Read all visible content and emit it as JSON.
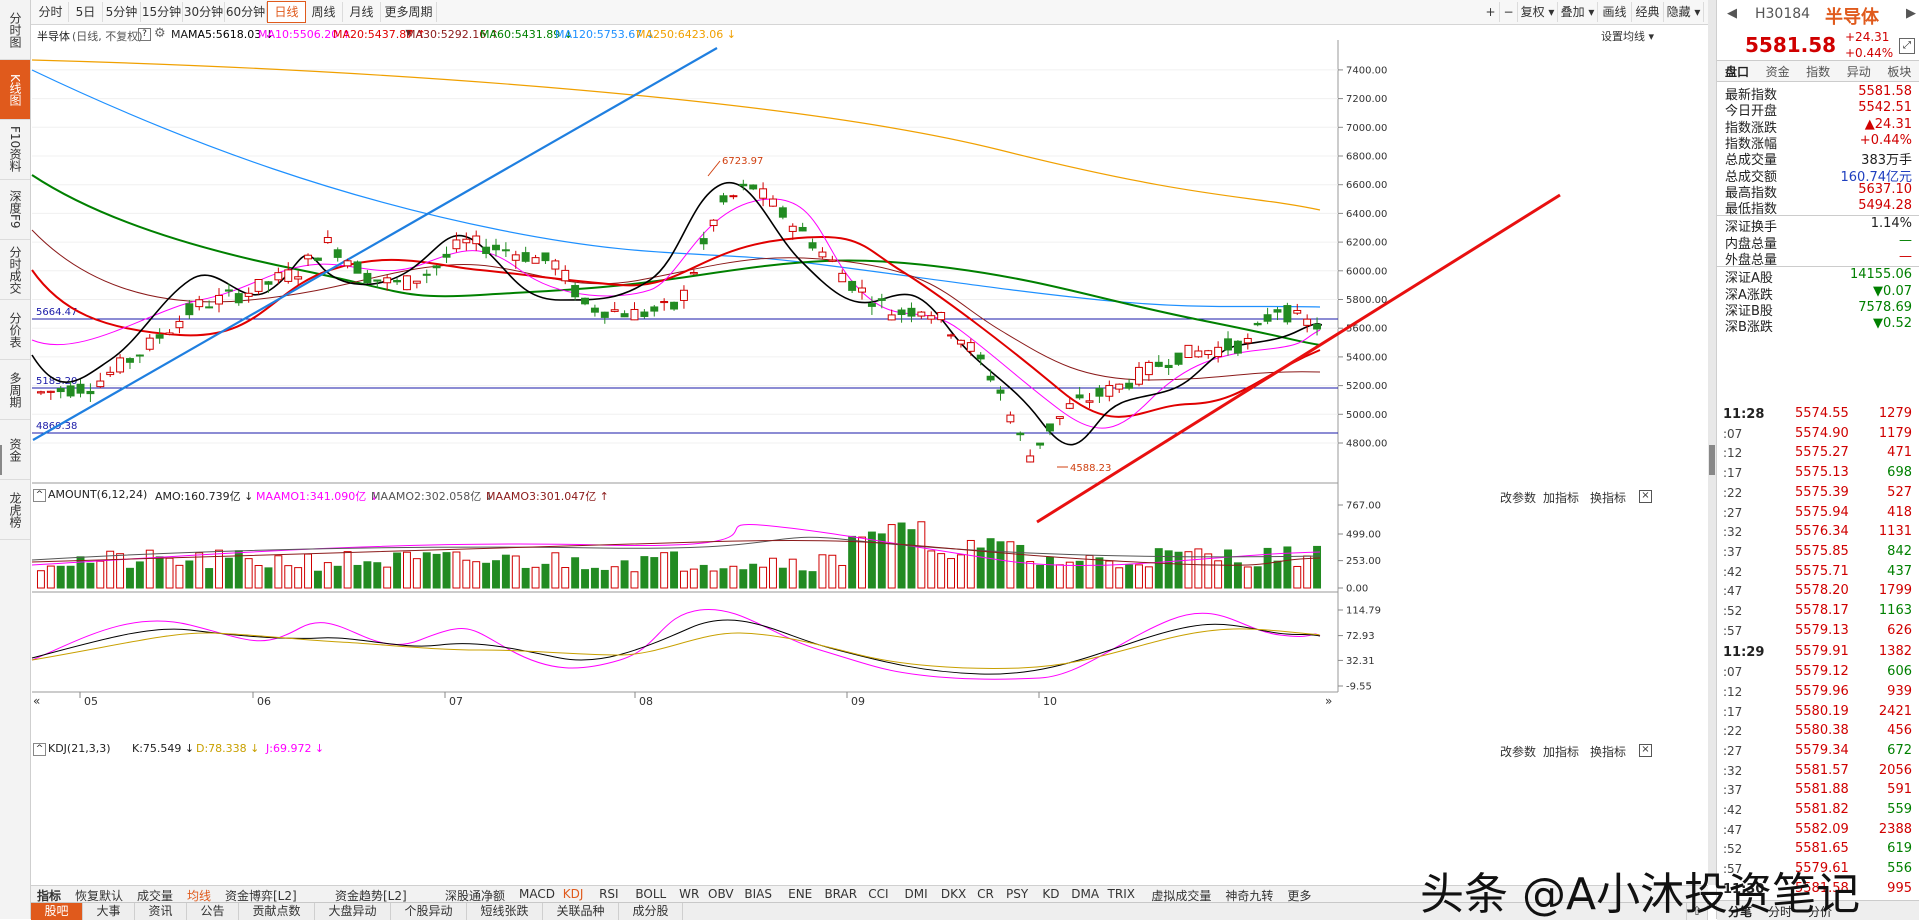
{
  "left_nav": [
    {
      "label": "分时图",
      "active": false
    },
    {
      "label": "K线图",
      "active": true
    },
    {
      "label": "F10资料",
      "active": false
    },
    {
      "label": "深度F9",
      "active": false
    },
    {
      "label": "分时成交",
      "active": false
    },
    {
      "label": "分价表",
      "active": false
    },
    {
      "label": "多周期",
      "active": false
    },
    {
      "label": "资金",
      "active": false
    },
    {
      "label": "龙虎榜",
      "active": false
    }
  ],
  "toolbar": {
    "periods": [
      "分时",
      "5日",
      "5分钟",
      "15分钟",
      "30分钟",
      "60分钟",
      "日线",
      "周线",
      "月线",
      "更多周期 ▾"
    ],
    "active_period": "日线",
    "right_buttons": [
      "+",
      "−",
      "复权 ▾",
      "叠加 ▾",
      "画线",
      "经典",
      "隐藏 ▾"
    ]
  },
  "info_line": {
    "name": "半导体",
    "mode": "(日线, 不复权)",
    "help": "?",
    "ma_label": "MA",
    "ma5": "MA5:5618.03 ↓",
    "ma10": "MA10:5506.20 ↑",
    "ma20": "MA20:5437.87 ↑",
    "ma30": "MA30:5292.16 ↑",
    "ma60": "MA60:5431.89 ↓",
    "ma120": "MA120:5753.67 ↓",
    "ma250": "MA250:6423.06 ↓",
    "settings": "设置均线 ▾"
  },
  "colors": {
    "up": "#d00000",
    "down": "#228b22",
    "ma5": "#000000",
    "ma10": "#ff00ff",
    "ma20": "#e00000",
    "ma30": "#8b1a1a",
    "ma60": "#008000",
    "ma120": "#1e90ff",
    "ma250": "#f0a000",
    "accent": "#e05a1c"
  },
  "price_axis": [
    "7400.00",
    "7200.00",
    "7000.00",
    "6800.00",
    "6600.00",
    "6400.00",
    "6200.00",
    "6000.00",
    "5800.00",
    "5600.00",
    "5400.00",
    "5200.00",
    "5000.00",
    "4800.00"
  ],
  "price_annotations": {
    "high": "6723.97",
    "low": "4588.23",
    "line1": "5664.47",
    "line2": "5183.20",
    "line3": "4869.38"
  },
  "x_axis": [
    "05",
    "06",
    "07",
    "08",
    "09",
    "10"
  ],
  "amount_panel": {
    "title": "AMOUNT(6,12,24)",
    "amo": "AMO:160.739亿 ↓",
    "maamo1": "MAAMO1:341.090亿 ↓",
    "maamo2": "MAAMO2:302.058亿 ↓",
    "maamo3": "MAAMO3:301.047亿 ↑",
    "axis": [
      "767.00",
      "499.00",
      "253.00",
      "0.00"
    ],
    "controls": [
      "改参数",
      "加指标",
      "换指标"
    ],
    "close": "×"
  },
  "kdj_panel": {
    "title": "KDJ(21,3,3)",
    "k": "K:75.549 ↓",
    "d": "D:78.338 ↓",
    "j": "J:69.972 ↓",
    "axis": [
      "114.79",
      "72.93",
      "32.31",
      "-9.55"
    ],
    "controls": [
      "改参数",
      "加指标",
      "换指标"
    ],
    "close": "×"
  },
  "indicator_tabs": [
    "指标",
    "恢复默认",
    "成交量",
    "均线",
    "资金博弈[L2]",
    "资金趋势[L2]",
    "深股通净额",
    "MACD",
    "KDJ",
    "RSI",
    "BOLL",
    "WR",
    "OBV",
    "BIAS",
    "ENE",
    "BRAR",
    "CCI",
    "DMI",
    "DKX",
    "CR",
    "PSY",
    "KD",
    "DMA",
    "TRIX",
    "虚拟成交量",
    "神奇九转",
    "更多"
  ],
  "indicator_active": [
    "均线",
    "KDJ"
  ],
  "bottom_tabs": [
    "股吧",
    "大事",
    "资讯",
    "公告",
    "贡献点数",
    "大盘异动",
    "个股异动",
    "短线张跌",
    "关联品种",
    "成分股"
  ],
  "bottom_active": "股吧",
  "quote": {
    "code": "H30184",
    "name": "半导体",
    "price": "5581.58",
    "change": "+24.31",
    "change_pct": "+0.44%",
    "tabs": [
      "盘口",
      "资金",
      "指数",
      "异动",
      "板块"
    ],
    "stats": [
      {
        "label": "最新指数",
        "value": "5581.58",
        "color": "red"
      },
      {
        "label": "今日开盘",
        "value": "5542.51",
        "color": "red"
      },
      {
        "label": "指数涨跌",
        "value": "▲24.31",
        "color": "red"
      },
      {
        "label": "指数涨幅",
        "value": "+0.44%",
        "color": "red"
      },
      {
        "label": "总成交量",
        "value": "383万手",
        "color": "dark"
      },
      {
        "label": "总成交额",
        "value": "160.74亿元",
        "color": "blue"
      },
      {
        "label": "最高指数",
        "value": "5637.10",
        "color": "red"
      },
      {
        "label": "最低指数",
        "value": "5494.28",
        "color": "red"
      },
      {
        "label": "深证换手",
        "value": "1.14%",
        "color": "dark"
      },
      {
        "label": "内盘总量",
        "value": "—",
        "color": "green"
      },
      {
        "label": "外盘总量",
        "value": "—",
        "color": "red"
      },
      {
        "label": "深证A股",
        "value": "14155.06",
        "color": "green"
      },
      {
        "label": "深A涨跌",
        "value": "▼0.07",
        "color": "green"
      },
      {
        "label": "深证B股",
        "value": "7578.69",
        "color": "green"
      },
      {
        "label": "深B涨跌",
        "value": "▼0.52",
        "color": "green"
      }
    ],
    "ticks": [
      {
        "t": "11:28",
        "p": "5574.55",
        "v": "1279",
        "c": "red",
        "bold": true
      },
      {
        "t": ":07",
        "p": "5574.90",
        "v": "1179",
        "c": "red"
      },
      {
        "t": ":12",
        "p": "5575.27",
        "v": "471",
        "c": "red"
      },
      {
        "t": ":17",
        "p": "5575.13",
        "v": "698",
        "c": "green"
      },
      {
        "t": ":22",
        "p": "5575.39",
        "v": "527",
        "c": "red"
      },
      {
        "t": ":27",
        "p": "5575.94",
        "v": "418",
        "c": "red"
      },
      {
        "t": ":32",
        "p": "5576.34",
        "v": "1131",
        "c": "red"
      },
      {
        "t": ":37",
        "p": "5575.85",
        "v": "842",
        "c": "green"
      },
      {
        "t": ":42",
        "p": "5575.71",
        "v": "437",
        "c": "green"
      },
      {
        "t": ":47",
        "p": "5578.20",
        "v": "1799",
        "c": "red"
      },
      {
        "t": ":52",
        "p": "5578.17",
        "v": "1163",
        "c": "green"
      },
      {
        "t": ":57",
        "p": "5579.13",
        "v": "626",
        "c": "red"
      },
      {
        "t": "11:29",
        "p": "5579.91",
        "v": "1382",
        "c": "red",
        "bold": true
      },
      {
        "t": ":07",
        "p": "5579.12",
        "v": "606",
        "c": "green"
      },
      {
        "t": ":12",
        "p": "5579.96",
        "v": "939",
        "c": "red"
      },
      {
        "t": ":17",
        "p": "5580.19",
        "v": "2421",
        "c": "red"
      },
      {
        "t": ":22",
        "p": "5580.38",
        "v": "456",
        "c": "red"
      },
      {
        "t": ":27",
        "p": "5579.34",
        "v": "672",
        "c": "green"
      },
      {
        "t": ":32",
        "p": "5581.57",
        "v": "2056",
        "c": "red"
      },
      {
        "t": ":37",
        "p": "5581.88",
        "v": "591",
        "c": "red"
      },
      {
        "t": ":42",
        "p": "5581.82",
        "v": "559",
        "c": "green"
      },
      {
        "t": ":47",
        "p": "5582.09",
        "v": "2388",
        "c": "red"
      },
      {
        "t": ":52",
        "p": "5581.65",
        "v": "619",
        "c": "green"
      },
      {
        "t": ":57",
        "p": "5579.61",
        "v": "556",
        "c": "green"
      },
      {
        "t": "11:30",
        "p": "5581.58",
        "v": "995",
        "c": "red",
        "bold": true
      }
    ],
    "bottom_tabs": [
      "分笔",
      "分时",
      "分价"
    ]
  },
  "watermark": "头条 @A小沐投资笔记"
}
